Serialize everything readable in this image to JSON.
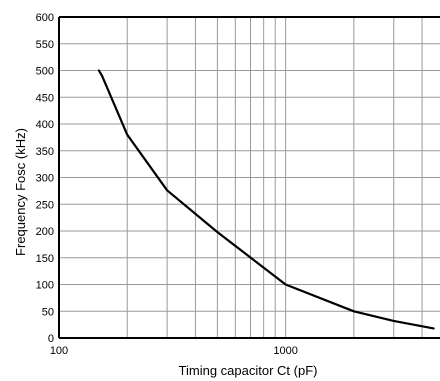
{
  "chart_data": {
    "type": "line",
    "title": "",
    "xlabel": "Timing capacitor Ct (pF)",
    "ylabel": "Frequency Fosc (kHz)",
    "x_scale": "log",
    "xlim": [
      100,
      4800
    ],
    "ylim": [
      0,
      600
    ],
    "grid": true,
    "x_tick_labels": [
      "100",
      "1000"
    ],
    "y_ticks": [
      0,
      50,
      100,
      150,
      200,
      250,
      300,
      350,
      400,
      450,
      500,
      550,
      600
    ],
    "series": [
      {
        "x": [
          150,
          155,
          200,
          300,
          500,
          1000,
          2000,
          3000,
          4500
        ],
        "y": [
          500,
          490,
          380,
          276,
          198,
          100,
          50,
          32,
          18
        ]
      }
    ]
  }
}
